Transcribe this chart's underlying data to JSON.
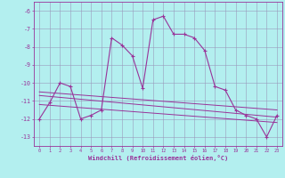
{
  "x": [
    0,
    1,
    2,
    3,
    4,
    5,
    6,
    7,
    8,
    9,
    10,
    11,
    12,
    13,
    14,
    15,
    16,
    17,
    18,
    19,
    20,
    21,
    22,
    23
  ],
  "windchill": [
    -12.0,
    -11.1,
    -10.0,
    -10.2,
    -12.0,
    -11.8,
    -11.5,
    -7.5,
    -7.9,
    -8.5,
    -10.3,
    -6.5,
    -6.3,
    -7.3,
    -7.3,
    -7.5,
    -8.2,
    -10.2,
    -10.4,
    -11.5,
    -11.8,
    -12.0,
    -13.0,
    -11.8
  ],
  "trend1_x": [
    0,
    23
  ],
  "trend1_y": [
    -10.5,
    -11.5
  ],
  "trend2_x": [
    0,
    23
  ],
  "trend2_y": [
    -10.7,
    -11.9
  ],
  "trend3_x": [
    0,
    23
  ],
  "trend3_y": [
    -11.2,
    -12.2
  ],
  "line_color": "#993399",
  "bg_color": "#b3efef",
  "grid_color": "#9999bb",
  "xlabel": "Windchill (Refroidissement éolien,°C)",
  "ylim_min": -13.5,
  "ylim_max": -5.5,
  "xlim_min": -0.5,
  "xlim_max": 23.5,
  "yticks": [
    -6,
    -7,
    -8,
    -9,
    -10,
    -11,
    -12,
    -13
  ],
  "xticks": [
    0,
    1,
    2,
    3,
    4,
    5,
    6,
    7,
    8,
    9,
    10,
    11,
    12,
    13,
    14,
    15,
    16,
    17,
    18,
    19,
    20,
    21,
    22,
    23
  ]
}
